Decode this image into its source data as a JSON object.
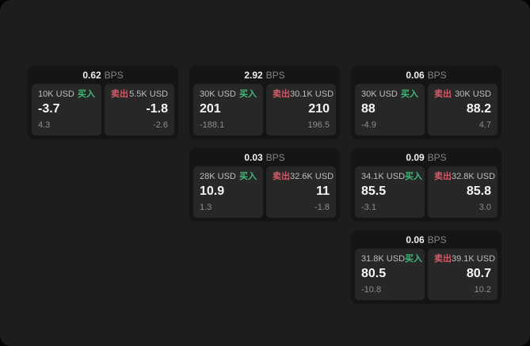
{
  "labels": {
    "buy": "买入",
    "sell": "卖出",
    "bps_unit": "BPS"
  },
  "colors": {
    "buy_green": "#3dba76",
    "sell_red": "#d25a67",
    "page_bg": "#1d1d1d",
    "card_bg": "#151515",
    "panel_bg": "#272727"
  },
  "cards": [
    {
      "row": 1,
      "col": 1,
      "bps": "0.62",
      "buy": {
        "notional": "10K USD",
        "price": "-3.7",
        "delta": "4.3"
      },
      "sell": {
        "notional": "5.5K USD",
        "price": "-1.8",
        "delta": "-2.6"
      }
    },
    {
      "row": 1,
      "col": 2,
      "bps": "2.92",
      "buy": {
        "notional": "30K USD",
        "price": "201",
        "delta": "-188.1"
      },
      "sell": {
        "notional": "30.1K USD",
        "price": "210",
        "delta": "196.5"
      }
    },
    {
      "row": 1,
      "col": 3,
      "bps": "0.06",
      "buy": {
        "notional": "30K USD",
        "price": "88",
        "delta": "-4.9"
      },
      "sell": {
        "notional": "30K USD",
        "price": "88.2",
        "delta": "4.7"
      }
    },
    {
      "row": 2,
      "col": 2,
      "bps": "0.03",
      "buy": {
        "notional": "28K USD",
        "price": "10.9",
        "delta": "1.3"
      },
      "sell": {
        "notional": "32.6K USD",
        "price": "11",
        "delta": "-1.8"
      }
    },
    {
      "row": 2,
      "col": 3,
      "bps": "0.09",
      "buy": {
        "notional": "34.1K USD",
        "price": "85.5",
        "delta": "-3.1"
      },
      "sell": {
        "notional": "32.8K USD",
        "price": "85.8",
        "delta": "3.0"
      }
    },
    {
      "row": 3,
      "col": 3,
      "bps": "0.06",
      "buy": {
        "notional": "31.8K USD",
        "price": "80.5",
        "delta": "-10.8"
      },
      "sell": {
        "notional": "39.1K USD",
        "price": "80.7",
        "delta": "10.2"
      }
    }
  ]
}
